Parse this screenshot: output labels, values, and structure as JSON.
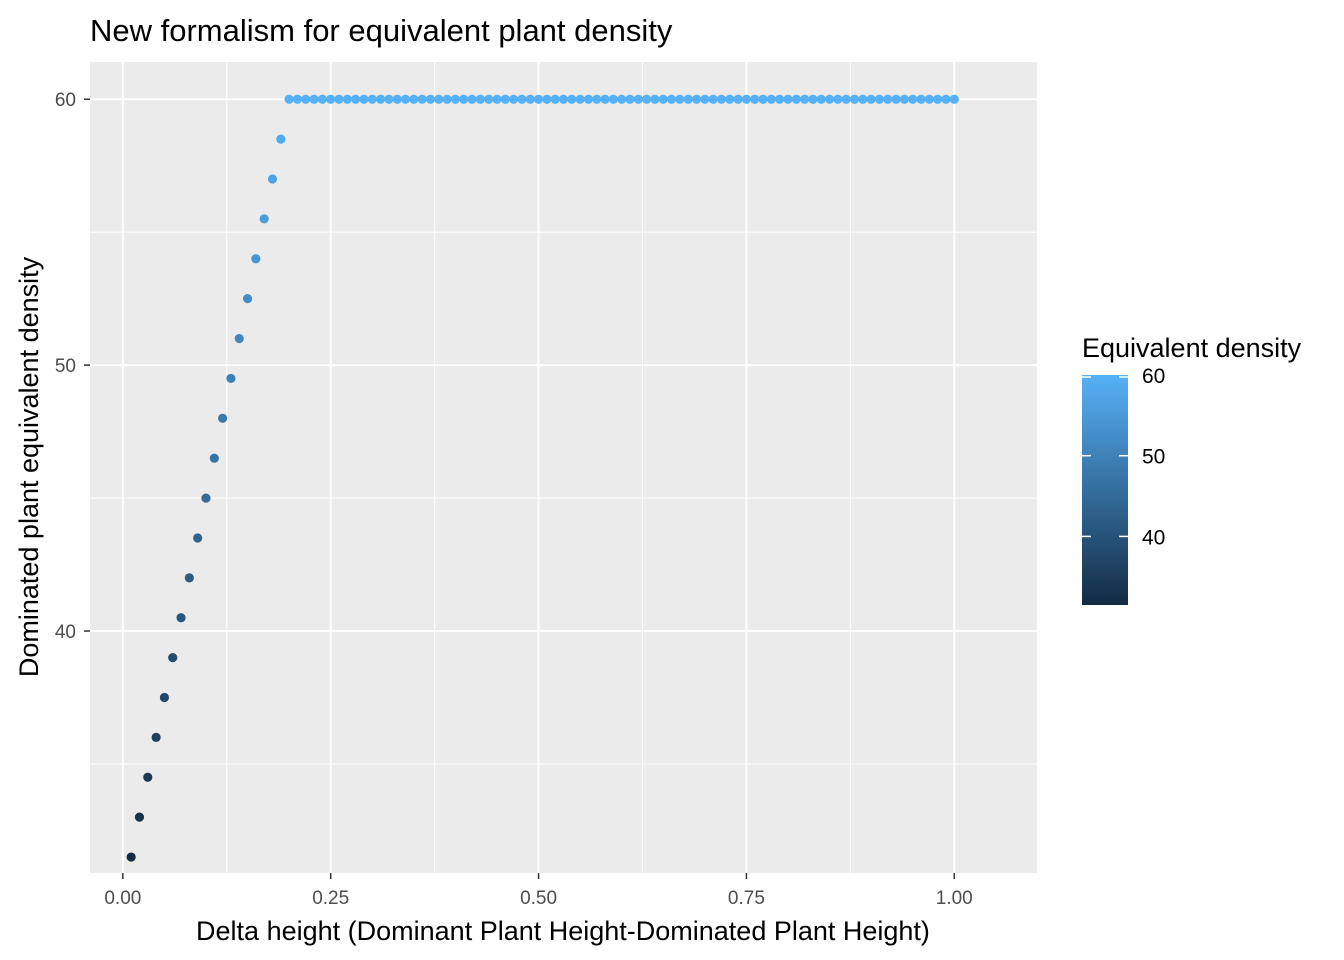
{
  "chart_data": {
    "type": "scatter",
    "title": "New formalism for equivalent plant density",
    "xlabel": "Delta height (Dominant Plant Height-Dominated Plant Height)",
    "ylabel": "Dominated plant equivalent density",
    "xlim": [
      -0.0395,
      1.0995
    ],
    "ylim": [
      30.9,
      61.4
    ],
    "x_ticks": [
      0.0,
      0.25,
      0.5,
      0.75,
      1.0
    ],
    "x_tick_labels": [
      "0.00",
      "0.25",
      "0.50",
      "0.75",
      "1.00"
    ],
    "y_ticks": [
      40,
      50,
      60
    ],
    "y_tick_labels": [
      "40",
      "50",
      "60"
    ],
    "grid": true,
    "panel_background": "#EBEBEB",
    "grid_color": "#FFFFFF",
    "color_scale": {
      "title": "Equivalent density",
      "low_color": "#132B43",
      "high_color": "#56B1F7",
      "limits": [
        31.5,
        60
      ],
      "breaks": [
        40,
        50,
        60
      ],
      "break_labels": [
        "40",
        "50",
        "60"
      ],
      "legend_position": "right"
    },
    "rule": {
      "x_start": 0.01,
      "x_end": 1.0,
      "x_step": 0.01,
      "y_intercept": 30,
      "y_slope": 150,
      "y_cap": 60
    }
  }
}
